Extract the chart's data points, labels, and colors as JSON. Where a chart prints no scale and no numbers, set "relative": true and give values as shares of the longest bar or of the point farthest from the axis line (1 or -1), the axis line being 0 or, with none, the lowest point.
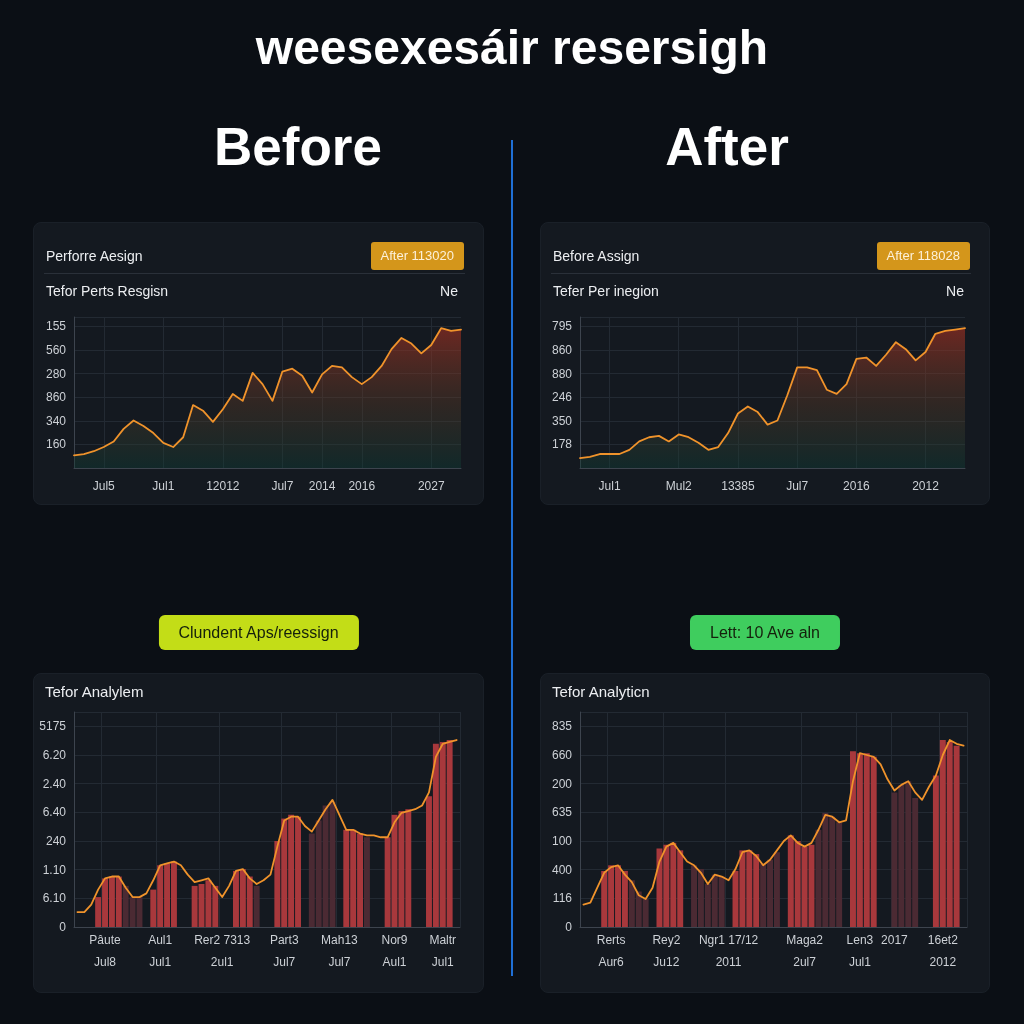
{
  "chart_data": [
    {
      "type": "other",
      "title": "weesexesáir resersigh",
      "annotations": [
        "Before",
        "After"
      ]
    },
    {
      "type": "area",
      "title": "Perforre Aesign",
      "subtitle": "Tefor Perts Resgisn",
      "annotations": [
        "After 113020",
        "Ne",
        "155",
        "560",
        "280",
        "860",
        "340",
        "160"
      ],
      "categories": [
        null,
        null,
        null,
        "Jul5",
        null,
        null,
        null,
        null,
        null,
        "Jul1",
        null,
        null,
        null,
        null,
        null,
        "12012",
        null,
        null,
        null,
        null,
        null,
        "Jul7",
        null,
        null,
        null,
        "2014",
        null,
        null,
        null,
        "2016",
        null,
        null,
        null,
        null,
        null,
        null,
        "2027",
        null,
        null,
        null
      ],
      "values": [
        0.09,
        0.1,
        0.12,
        0.15,
        0.19,
        0.28,
        0.34,
        0.3,
        0.25,
        0.18,
        0.15,
        0.22,
        0.45,
        0.41,
        0.33,
        0.42,
        0.53,
        0.48,
        0.68,
        0.6,
        0.48,
        0.69,
        0.71,
        0.66,
        0.54,
        0.67,
        0.73,
        0.72,
        0.65,
        0.6,
        0.65,
        0.73,
        0.85,
        0.93,
        0.89,
        0.82,
        0.88,
        1,
        0.98,
        0.99
      ],
      "color": "#f0932b",
      "relative": true,
      "grid": true
    },
    {
      "type": "area",
      "title": "Before Assign",
      "subtitle": "Tefer Per inegion",
      "annotations": [
        "After 118028",
        "Ne",
        "795",
        "860",
        "880",
        "246",
        "350",
        "178"
      ],
      "categories": [
        null,
        null,
        null,
        "Jul1",
        null,
        null,
        null,
        null,
        null,
        null,
        "Mul2",
        null,
        null,
        null,
        null,
        null,
        "13385",
        null,
        null,
        null,
        null,
        null,
        "Jul7",
        null,
        null,
        null,
        null,
        null,
        "2016",
        null,
        null,
        null,
        null,
        null,
        null,
        "2012",
        null,
        null,
        null,
        null
      ],
      "values": [
        0.07,
        0.08,
        0.1,
        0.1,
        0.1,
        0.13,
        0.19,
        0.22,
        0.23,
        0.19,
        0.24,
        0.22,
        0.18,
        0.13,
        0.15,
        0.25,
        0.39,
        0.44,
        0.4,
        0.31,
        0.34,
        0.52,
        0.72,
        0.72,
        0.7,
        0.56,
        0.53,
        0.6,
        0.78,
        0.79,
        0.73,
        0.81,
        0.9,
        0.85,
        0.77,
        0.83,
        0.96,
        0.98,
        0.99,
        1
      ],
      "color": "#f0932b",
      "relative": true,
      "grid": true
    },
    {
      "type": "bar",
      "title": "Tefor Analylem",
      "annotations": [
        "Clundent Aps/reessign",
        "5175",
        "6.20",
        "2.40",
        "6.40",
        "240",
        "1.10",
        "6.10",
        "0"
      ],
      "categories": [
        null,
        null,
        null,
        null,
        "Pâute\nJul8",
        null,
        null,
        null,
        null,
        null,
        null,
        null,
        "Aul1\nJul1",
        null,
        null,
        null,
        null,
        null,
        null,
        null,
        null,
        "Rer2 7313\n2ul1",
        null,
        null,
        null,
        null,
        null,
        null,
        null,
        null,
        "Part3\nJul7",
        null,
        null,
        null,
        null,
        null,
        null,
        null,
        "Mah13\nJul7",
        null,
        null,
        null,
        null,
        null,
        null,
        null,
        "Nor9\nAul1",
        null,
        null,
        null,
        null,
        null,
        null,
        "Maltr\nJul1",
        null,
        null
      ],
      "series": [
        {
          "type": "bar",
          "values": [
            null,
            null,
            null,
            0.16,
            0.26,
            0.27,
            0.27,
            0.22,
            0.16,
            0.16,
            null,
            0.2,
            0.33,
            0.34,
            0.35,
            null,
            null,
            0.22,
            0.23,
            0.25,
            0.22,
            null,
            null,
            0.3,
            0.31,
            0.27,
            0.22,
            null,
            null,
            0.46,
            0.58,
            0.6,
            0.59,
            null,
            0.5,
            0.57,
            0.65,
            0.67,
            null,
            0.52,
            0.52,
            0.5,
            0.48,
            null,
            null,
            0.48,
            0.6,
            0.62,
            0.63,
            null,
            null,
            0.7,
            0.98,
            0.99,
            1,
            null
          ],
          "colors": [
            null,
            null,
            null,
            "#a8383c",
            "#a8383c",
            "#a8383c",
            "#a8383c",
            "#4b2a33",
            "#4b2a33",
            "#4b2a33",
            null,
            "#a8383c",
            "#a8383c",
            "#a8383c",
            "#a8383c",
            null,
            null,
            "#a8383c",
            "#a8383c",
            "#a8383c",
            "#a8383c",
            null,
            null,
            "#a8383c",
            "#a8383c",
            "#a8383c",
            "#4b2a33",
            null,
            null,
            "#a8383c",
            "#a8383c",
            "#a8383c",
            "#a8383c",
            null,
            "#4b2a33",
            "#4b2a33",
            "#4b2a33",
            "#4b2a33",
            null,
            "#a8383c",
            "#a8383c",
            "#a8383c",
            "#4b2a33",
            null,
            null,
            "#a8383c",
            "#a8383c",
            "#a8383c",
            "#a8383c",
            null,
            null,
            "#a8383c",
            "#a8383c",
            "#a8383c",
            "#a8383c",
            null
          ]
        },
        {
          "type": "line",
          "color": "#f0932b",
          "values": [
            0.08,
            0.08,
            0.12,
            0.2,
            0.26,
            0.27,
            0.27,
            0.21,
            0.16,
            0.16,
            0.18,
            0.25,
            0.33,
            0.34,
            0.35,
            0.33,
            0.28,
            0.24,
            0.25,
            0.26,
            0.21,
            0.16,
            0.22,
            0.3,
            0.31,
            0.26,
            0.23,
            0.25,
            0.28,
            0.43,
            0.57,
            0.59,
            0.59,
            0.54,
            0.51,
            0.57,
            0.63,
            0.68,
            0.6,
            0.52,
            0.52,
            0.5,
            0.49,
            0.49,
            0.48,
            0.48,
            0.56,
            0.61,
            0.62,
            0.63,
            0.65,
            0.72,
            0.91,
            0.98,
            0.99,
            1
          ]
        }
      ],
      "relative": true,
      "grid": true
    },
    {
      "type": "bar",
      "title": "Tefor Analyticn",
      "annotations": [
        "Lett: 10 Ave aln",
        "835",
        "660",
        "200",
        "635",
        "100",
        "400",
        "116",
        "0"
      ],
      "categories": [
        null,
        null,
        null,
        null,
        "Rerts\nAur6",
        null,
        null,
        null,
        null,
        null,
        null,
        null,
        "Rey2\nJu12",
        null,
        null,
        null,
        null,
        null,
        null,
        null,
        null,
        "Ngr1 17/12\n2011",
        null,
        null,
        null,
        null,
        null,
        null,
        null,
        null,
        null,
        null,
        "Maga2\n2ul7",
        null,
        null,
        null,
        null,
        null,
        null,
        null,
        "Len3\nJul1",
        null,
        null,
        null,
        null,
        "2017",
        null,
        null,
        null,
        null,
        null,
        null,
        "16et2\n2012",
        null,
        null,
        null
      ],
      "series": [
        {
          "type": "bar",
          "values": [
            null,
            null,
            null,
            0.3,
            0.33,
            0.33,
            0.3,
            0.25,
            0.19,
            0.15,
            null,
            0.42,
            0.44,
            0.45,
            0.41,
            null,
            0.33,
            0.31,
            0.23,
            0.28,
            0.27,
            null,
            0.3,
            0.41,
            0.41,
            0.39,
            0.34,
            0.36,
            0.4,
            null,
            0.49,
            0.46,
            0.43,
            0.44,
            0.52,
            0.61,
            0.59,
            0.56,
            null,
            0.94,
            0.93,
            0.93,
            0.91,
            null,
            null,
            0.72,
            0.76,
            0.78,
            0.69,
            null,
            null,
            0.81,
            1,
            0.99,
            0.97,
            null
          ],
          "colors": [
            null,
            null,
            null,
            "#a8383c",
            "#a8383c",
            "#a8383c",
            "#a8383c",
            "#4b2a33",
            "#4b2a33",
            "#4b2a33",
            null,
            "#a8383c",
            "#a8383c",
            "#a8383c",
            "#a8383c",
            null,
            "#4b2a33",
            "#4b2a33",
            "#4b2a33",
            "#4b2a33",
            "#4b2a33",
            null,
            "#a8383c",
            "#a8383c",
            "#a8383c",
            "#a8383c",
            "#4b2a33",
            "#4b2a33",
            "#4b2a33",
            null,
            "#a8383c",
            "#a8383c",
            "#a8383c",
            "#a8383c",
            "#4b2a33",
            "#4b2a33",
            "#4b2a33",
            "#4b2a33",
            null,
            "#a8383c",
            "#a8383c",
            "#a8383c",
            "#a8383c",
            null,
            null,
            "#4b2a33",
            "#4b2a33",
            "#4b2a33",
            "#4b2a33",
            null,
            null,
            "#a8383c",
            "#a8383c",
            "#a8383c",
            "#a8383c",
            null
          ]
        },
        {
          "type": "line",
          "color": "#f0932b",
          "values": [
            0.12,
            0.13,
            0.21,
            0.29,
            0.32,
            0.33,
            0.28,
            0.24,
            0.17,
            0.15,
            0.21,
            0.35,
            0.43,
            0.45,
            0.4,
            0.35,
            0.33,
            0.29,
            0.23,
            0.28,
            0.27,
            0.25,
            0.31,
            0.4,
            0.41,
            0.38,
            0.33,
            0.36,
            0.41,
            0.46,
            0.49,
            0.45,
            0.43,
            0.45,
            0.52,
            0.6,
            0.59,
            0.56,
            0.57,
            0.78,
            0.93,
            0.92,
            0.91,
            0.87,
            0.79,
            0.73,
            0.76,
            0.78,
            0.72,
            0.68,
            0.75,
            0.81,
            0.92,
            1,
            0.98,
            0.97
          ]
        }
      ],
      "relative": true,
      "grid": true
    }
  ]
}
